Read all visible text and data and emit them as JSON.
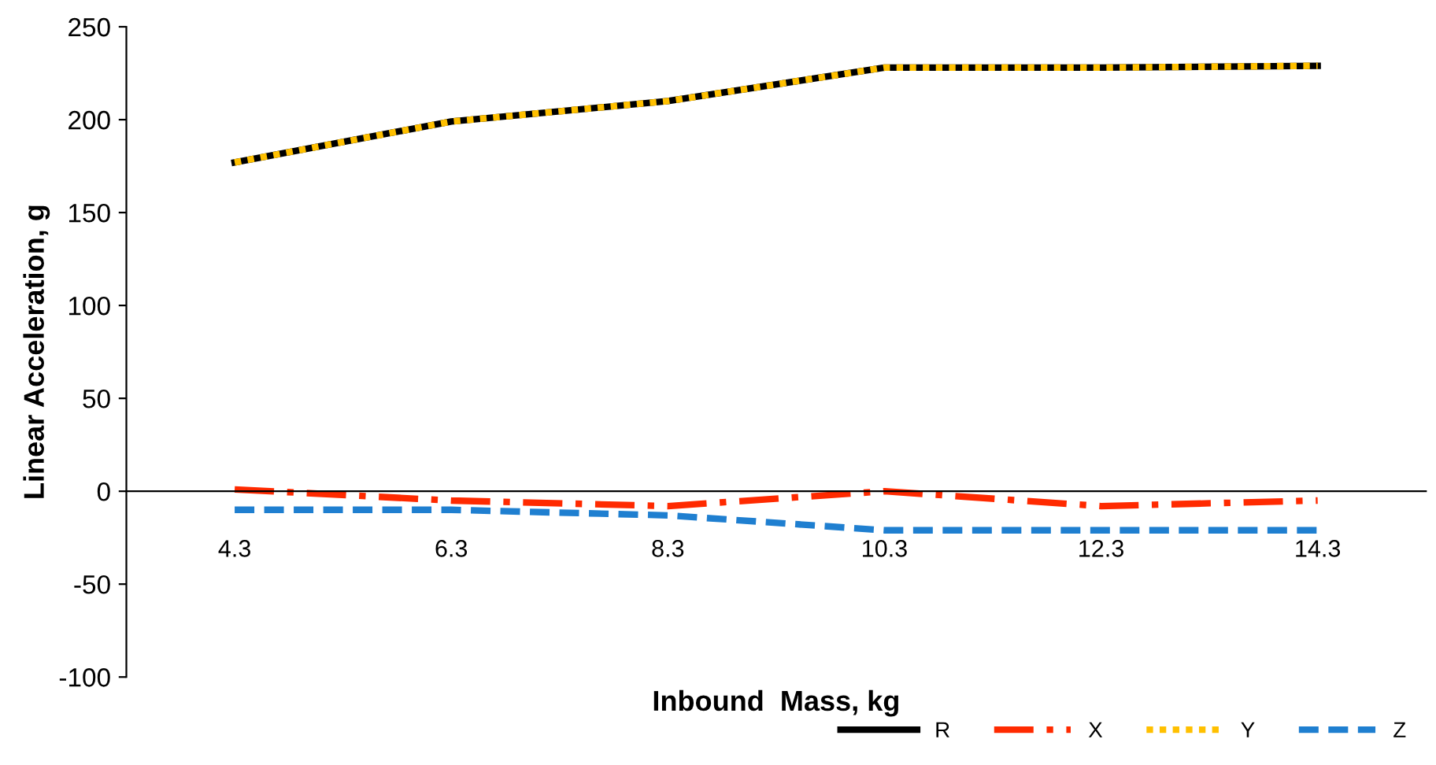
{
  "chart_data": {
    "type": "line",
    "xlabel": "Inbound  Mass, kg",
    "ylabel": "Linear Acceleration, g",
    "categories": [
      "4.3",
      "6.3",
      "8.3",
      "10.3",
      "12.3",
      "14.3"
    ],
    "series": [
      {
        "name": "R",
        "color": "#000000",
        "values": [
          177,
          199,
          210,
          228,
          228,
          229
        ],
        "line_style": "solid"
      },
      {
        "name": "X",
        "color": "#ff2a00",
        "values": [
          1,
          -5,
          -8,
          0,
          -8,
          -5
        ],
        "line_style": "dashdot"
      },
      {
        "name": "Y",
        "color": "#ffc000",
        "values": [
          177,
          199,
          210,
          228,
          228,
          229
        ],
        "line_style": "dotted"
      },
      {
        "name": "Z",
        "color": "#1f7fd0",
        "values": [
          -10,
          -10,
          -13,
          -21,
          -21,
          -21
        ],
        "line_style": "dashed"
      }
    ],
    "ylim": [
      -100,
      250
    ],
    "yticks": [
      -100,
      -50,
      0,
      50,
      100,
      150,
      200,
      250
    ],
    "grid": false,
    "legend": "bottom right",
    "marker": "none"
  }
}
